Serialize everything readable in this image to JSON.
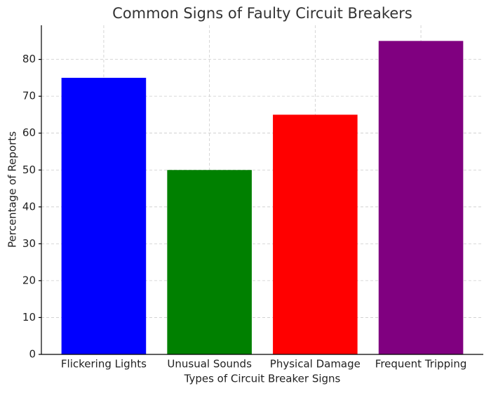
{
  "chart_data": {
    "type": "bar",
    "title": "Common Signs of Faulty Circuit Breakers",
    "x_label": "Types of Circuit Breaker Signs",
    "y_label": "Percentage of Reports",
    "categories": [
      "Flickering Lights",
      "Unusual Sounds",
      "Physical Damage",
      "Frequent Tripping"
    ],
    "values": [
      75,
      50,
      65,
      85
    ],
    "colors": [
      "#0000ff",
      "#008000",
      "#ff0000",
      "#800080"
    ],
    "ylim": [
      0,
      89.25
    ],
    "yticks": [
      0,
      10,
      20,
      30,
      40,
      50,
      60,
      70,
      80
    ],
    "grid": true
  }
}
